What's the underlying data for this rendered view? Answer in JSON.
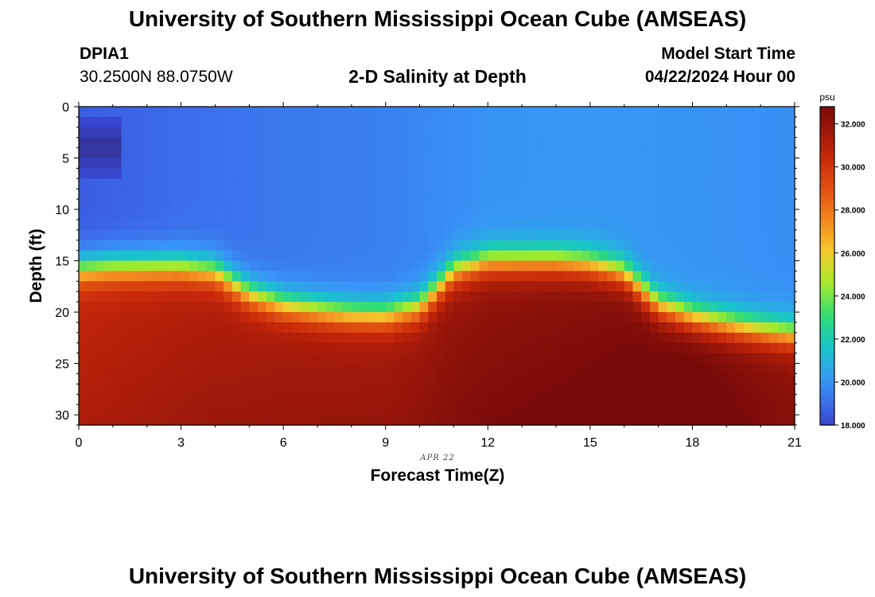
{
  "header": {
    "title": "University of Southern Mississippi Ocean Cube (AMSEAS)",
    "station_id": "DPIA1",
    "coords": "30.2500N  88.0750W",
    "plot_title": "2-D Salinity at Depth",
    "start_label": "Model Start Time",
    "start_value": "04/22/2024 Hour 00"
  },
  "footer": {
    "title": "University of Southern Mississippi Ocean Cube (AMSEAS)"
  },
  "chart_data": {
    "type": "heatmap",
    "title": "2-D Salinity at Depth",
    "xlabel": "Forecast Time(Z)",
    "ylabel": "Depth (ft)",
    "date_label": "APR 22",
    "x_ticks": [
      0,
      3,
      6,
      9,
      12,
      15,
      18,
      21
    ],
    "y_ticks": [
      0,
      5,
      10,
      15,
      20,
      25,
      30
    ],
    "xlim": [
      0,
      21
    ],
    "ylim": [
      0,
      31
    ],
    "colorbar": {
      "unit": "psu",
      "min": 18.0,
      "max": 32.8,
      "ticks": [
        "18.000",
        "20.000",
        "22.000",
        "24.000",
        "26.000",
        "28.000",
        "30.000",
        "32.000"
      ]
    },
    "halocline_depth_ft": [
      {
        "t": 0,
        "d": 15.8
      },
      {
        "t": 1,
        "d": 15.6
      },
      {
        "t": 2,
        "d": 15.6
      },
      {
        "t": 3,
        "d": 15.6
      },
      {
        "t": 4,
        "d": 16.0
      },
      {
        "t": 5,
        "d": 18.2
      },
      {
        "t": 6,
        "d": 19.3
      },
      {
        "t": 7,
        "d": 19.8
      },
      {
        "t": 8,
        "d": 20.2
      },
      {
        "t": 9,
        "d": 20.3
      },
      {
        "t": 10,
        "d": 19.5
      },
      {
        "t": 11,
        "d": 16.0
      },
      {
        "t": 12,
        "d": 15.0
      },
      {
        "t": 13,
        "d": 15.0
      },
      {
        "t": 14,
        "d": 15.0
      },
      {
        "t": 15,
        "d": 15.3
      },
      {
        "t": 16,
        "d": 16.2
      },
      {
        "t": 17,
        "d": 19.3
      },
      {
        "t": 18,
        "d": 20.5
      },
      {
        "t": 19,
        "d": 21.2
      },
      {
        "t": 20,
        "d": 21.8
      },
      {
        "t": 21,
        "d": 22.2
      }
    ],
    "surface_salinity_psu": [
      {
        "t": 0,
        "s": 18.6
      },
      {
        "t": 3,
        "s": 19.0
      },
      {
        "t": 6,
        "s": 19.3
      },
      {
        "t": 9,
        "s": 19.5
      },
      {
        "t": 12,
        "s": 20.0
      },
      {
        "t": 15,
        "s": 20.1
      },
      {
        "t": 18,
        "s": 20.0
      },
      {
        "t": 21,
        "s": 19.9
      }
    ],
    "bottom_salinity_psu": [
      {
        "t": 0,
        "s": 30.6
      },
      {
        "t": 3,
        "s": 31.0
      },
      {
        "t": 6,
        "s": 31.4
      },
      {
        "t": 9,
        "s": 31.5
      },
      {
        "t": 12,
        "s": 32.0
      },
      {
        "t": 15,
        "s": 32.3
      },
      {
        "t": 18,
        "s": 32.8
      },
      {
        "t": 21,
        "s": 32.0
      }
    ],
    "low_salinity_patch": {
      "t_range": [
        0,
        1.25
      ],
      "depth_range_ft": [
        1.5,
        6.5
      ],
      "min_psu": 16.5
    }
  }
}
